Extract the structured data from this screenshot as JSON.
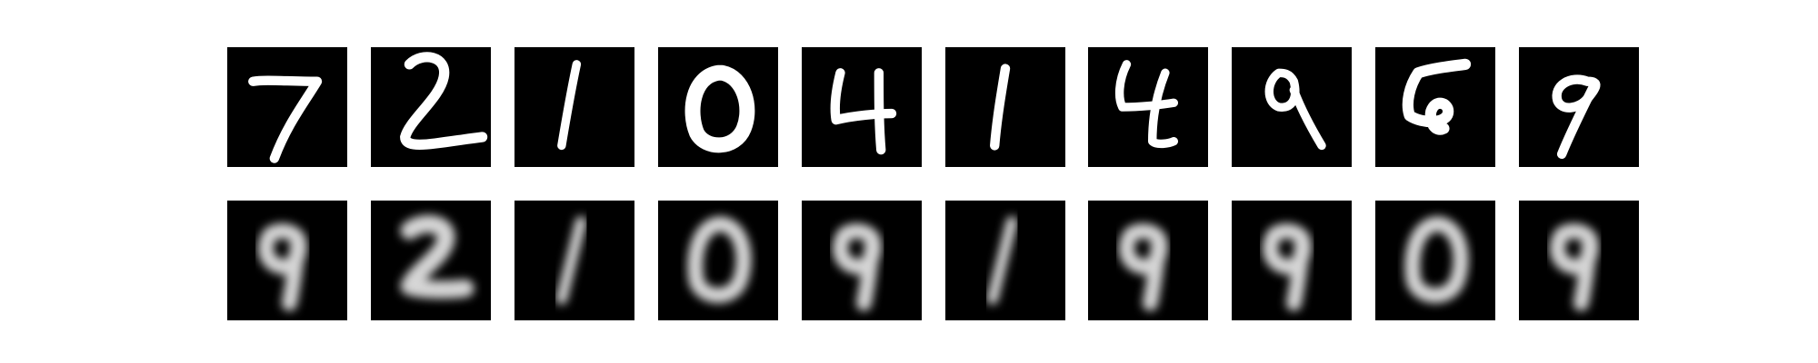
{
  "figure": {
    "background_color": "#ffffff",
    "tile_background": "#000000",
    "rows": [
      {
        "kind": "original",
        "stroke_color": "#ffffff",
        "digits": [
          "7",
          "2",
          "1",
          "0",
          "4",
          "1",
          "4",
          "9",
          "5",
          "9"
        ]
      },
      {
        "kind": "reconstruction",
        "stroke_color": "#d6d6d6",
        "blurred": true,
        "digits": [
          "9",
          "2",
          "1",
          "0",
          "9",
          "1",
          "9",
          "9",
          "0",
          "9"
        ]
      }
    ]
  }
}
